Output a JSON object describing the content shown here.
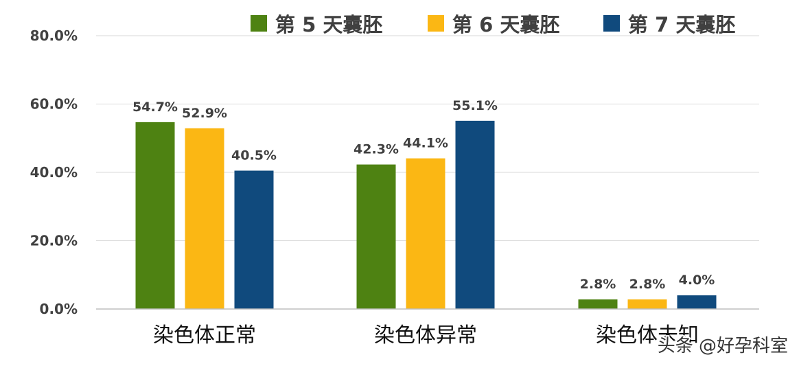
{
  "chart_data": {
    "type": "bar",
    "categories": [
      "染色体正常",
      "染色体异常",
      "染色体未知"
    ],
    "series": [
      {
        "name": "第 5 天囊胚",
        "color": "#4e8212",
        "values": [
          54.7,
          42.3,
          2.8
        ],
        "labels": [
          "54.7%",
          "42.3%",
          "2.8%"
        ]
      },
      {
        "name": "第 6 天囊胚",
        "color": "#fbb714",
        "values": [
          52.9,
          44.1,
          2.8
        ],
        "labels": [
          "52.9%",
          "44.1%",
          "2.8%"
        ]
      },
      {
        "name": "第 7 天囊胚",
        "color": "#104a7d",
        "values": [
          40.5,
          55.1,
          4.0
        ],
        "labels": [
          "40.5%",
          "55.1%",
          "4.0%"
        ]
      }
    ],
    "ylim": [
      0,
      80
    ],
    "yticks": [
      0,
      20,
      40,
      60,
      80
    ],
    "ytick_labels": [
      "0.0%",
      "20.0%",
      "40.0%",
      "60.0%",
      "80.0%"
    ],
    "grid": true,
    "legend_position": "top-right"
  },
  "watermark": "头条 @好孕科室"
}
